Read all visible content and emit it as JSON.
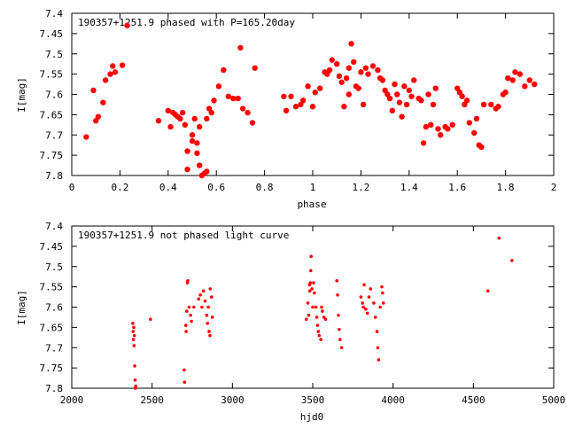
{
  "chart_data": [
    {
      "type": "scatter",
      "title": "190357+1251.9 phased with P=165.20day",
      "xlabel": "phase",
      "ylabel": "I[mag]",
      "xlim": [
        0,
        2
      ],
      "ylim": [
        7.8,
        7.4
      ],
      "y_inverted": true,
      "grid": false,
      "marker_color": "#ff0000",
      "x_ticks": [
        "0",
        "0.2",
        "0.4",
        "0.6",
        "0.8",
        "1",
        "1.2",
        "1.4",
        "1.6",
        "1.8",
        "2"
      ],
      "y_ticks": [
        "7.4",
        "7.45",
        "7.5",
        "7.55",
        "7.6",
        "7.65",
        "7.7",
        "7.75",
        "7.8"
      ],
      "points": [
        [
          0.06,
          7.705
        ],
        [
          0.09,
          7.59
        ],
        [
          0.1,
          7.665
        ],
        [
          0.11,
          7.655
        ],
        [
          0.13,
          7.62
        ],
        [
          0.14,
          7.565
        ],
        [
          0.16,
          7.55
        ],
        [
          0.17,
          7.53
        ],
        [
          0.18,
          7.545
        ],
        [
          0.21,
          7.528
        ],
        [
          0.23,
          7.43
        ],
        [
          0.36,
          7.665
        ],
        [
          0.4,
          7.64
        ],
        [
          0.41,
          7.68
        ],
        [
          0.42,
          7.645
        ],
        [
          0.43,
          7.65
        ],
        [
          0.44,
          7.655
        ],
        [
          0.45,
          7.66
        ],
        [
          0.46,
          7.645
        ],
        [
          0.47,
          7.675
        ],
        [
          0.48,
          7.74
        ],
        [
          0.48,
          7.785
        ],
        [
          0.5,
          7.715
        ],
        [
          0.5,
          7.7
        ],
        [
          0.51,
          7.66
        ],
        [
          0.52,
          7.745
        ],
        [
          0.52,
          7.72
        ],
        [
          0.53,
          7.68
        ],
        [
          0.53,
          7.775
        ],
        [
          0.54,
          7.8
        ],
        [
          0.55,
          7.795
        ],
        [
          0.56,
          7.79
        ],
        [
          0.56,
          7.66
        ],
        [
          0.57,
          7.635
        ],
        [
          0.58,
          7.645
        ],
        [
          0.59,
          7.615
        ],
        [
          0.61,
          7.58
        ],
        [
          0.63,
          7.54
        ],
        [
          0.65,
          7.605
        ],
        [
          0.67,
          7.61
        ],
        [
          0.69,
          7.61
        ],
        [
          0.7,
          7.485
        ],
        [
          0.71,
          7.635
        ],
        [
          0.73,
          7.645
        ],
        [
          0.75,
          7.67
        ],
        [
          0.76,
          7.535
        ],
        [
          0.88,
          7.605
        ],
        [
          0.89,
          7.64
        ],
        [
          0.91,
          7.605
        ],
        [
          0.93,
          7.63
        ],
        [
          0.95,
          7.625
        ],
        [
          0.96,
          7.615
        ],
        [
          0.98,
          7.58
        ],
        [
          1.0,
          7.63
        ],
        [
          1.01,
          7.595
        ],
        [
          1.03,
          7.585
        ],
        [
          1.05,
          7.545
        ],
        [
          1.06,
          7.55
        ],
        [
          1.07,
          7.54
        ],
        [
          1.08,
          7.515
        ],
        [
          1.1,
          7.525
        ],
        [
          1.11,
          7.555
        ],
        [
          1.12,
          7.57
        ],
        [
          1.13,
          7.63
        ],
        [
          1.14,
          7.56
        ],
        [
          1.15,
          7.535
        ],
        [
          1.15,
          7.6
        ],
        [
          1.16,
          7.475
        ],
        [
          1.17,
          7.52
        ],
        [
          1.18,
          7.58
        ],
        [
          1.19,
          7.585
        ],
        [
          1.2,
          7.545
        ],
        [
          1.21,
          7.625
        ],
        [
          1.22,
          7.535
        ],
        [
          1.23,
          7.55
        ],
        [
          1.25,
          7.53
        ],
        [
          1.27,
          7.54
        ],
        [
          1.28,
          7.56
        ],
        [
          1.29,
          7.565
        ],
        [
          1.3,
          7.59
        ],
        [
          1.31,
          7.6
        ],
        [
          1.32,
          7.61
        ],
        [
          1.33,
          7.64
        ],
        [
          1.34,
          7.575
        ],
        [
          1.35,
          7.6
        ],
        [
          1.36,
          7.62
        ],
        [
          1.37,
          7.655
        ],
        [
          1.38,
          7.58
        ],
        [
          1.39,
          7.625
        ],
        [
          1.4,
          7.59
        ],
        [
          1.41,
          7.605
        ],
        [
          1.42,
          7.565
        ],
        [
          1.44,
          7.61
        ],
        [
          1.45,
          7.615
        ],
        [
          1.46,
          7.72
        ],
        [
          1.47,
          7.68
        ],
        [
          1.48,
          7.6
        ],
        [
          1.49,
          7.675
        ],
        [
          1.5,
          7.625
        ],
        [
          1.51,
          7.585
        ],
        [
          1.52,
          7.685
        ],
        [
          1.53,
          7.7
        ],
        [
          1.55,
          7.68
        ],
        [
          1.56,
          7.685
        ],
        [
          1.58,
          7.675
        ],
        [
          1.6,
          7.585
        ],
        [
          1.61,
          7.595
        ],
        [
          1.62,
          7.605
        ],
        [
          1.63,
          7.625
        ],
        [
          1.64,
          7.615
        ],
        [
          1.65,
          7.67
        ],
        [
          1.67,
          7.695
        ],
        [
          1.68,
          7.66
        ],
        [
          1.69,
          7.725
        ],
        [
          1.7,
          7.73
        ],
        [
          1.71,
          7.625
        ],
        [
          1.74,
          7.625
        ],
        [
          1.76,
          7.635
        ],
        [
          1.77,
          7.63
        ],
        [
          1.79,
          7.6
        ],
        [
          1.8,
          7.595
        ],
        [
          1.81,
          7.56
        ],
        [
          1.83,
          7.565
        ],
        [
          1.84,
          7.545
        ],
        [
          1.86,
          7.55
        ],
        [
          1.88,
          7.58
        ],
        [
          1.9,
          7.565
        ],
        [
          1.92,
          7.575
        ]
      ]
    },
    {
      "type": "scatter",
      "title": "190357+1251.9 not phased light curve",
      "xlabel": "hjd0",
      "ylabel": "I[mag]",
      "xlim": [
        2000,
        5000
      ],
      "ylim": [
        7.8,
        7.4
      ],
      "y_inverted": true,
      "grid": false,
      "marker_color": "#ff0000",
      "x_ticks": [
        "2000",
        "2500",
        "3000",
        "3500",
        "4000",
        "4500",
        "5000"
      ],
      "y_ticks": [
        "7.4",
        "7.45",
        "7.5",
        "7.55",
        "7.6",
        "7.65",
        "7.7",
        "7.75",
        "7.8"
      ],
      "points": [
        [
          2380,
          7.64
        ],
        [
          2382,
          7.66
        ],
        [
          2384,
          7.68
        ],
        [
          2386,
          7.65
        ],
        [
          2388,
          7.695
        ],
        [
          2390,
          7.67
        ],
        [
          2392,
          7.745
        ],
        [
          2394,
          7.78
        ],
        [
          2396,
          7.8
        ],
        [
          2398,
          7.795
        ],
        [
          2490,
          7.63
        ],
        [
          2700,
          7.755
        ],
        [
          2702,
          7.785
        ],
        [
          2710,
          7.645
        ],
        [
          2712,
          7.66
        ],
        [
          2716,
          7.61
        ],
        [
          2720,
          7.54
        ],
        [
          2722,
          7.535
        ],
        [
          2730,
          7.6
        ],
        [
          2740,
          7.62
        ],
        [
          2745,
          7.635
        ],
        [
          2760,
          7.6
        ],
        [
          2790,
          7.58
        ],
        [
          2800,
          7.57
        ],
        [
          2810,
          7.6
        ],
        [
          2820,
          7.56
        ],
        [
          2830,
          7.585
        ],
        [
          2840,
          7.62
        ],
        [
          2845,
          7.64
        ],
        [
          2850,
          7.6
        ],
        [
          2855,
          7.66
        ],
        [
          2860,
          7.67
        ],
        [
          2862,
          7.555
        ],
        [
          2870,
          7.575
        ],
        [
          2875,
          7.625
        ],
        [
          3460,
          7.63
        ],
        [
          3470,
          7.59
        ],
        [
          3475,
          7.62
        ],
        [
          3480,
          7.545
        ],
        [
          3482,
          7.56
        ],
        [
          3485,
          7.54
        ],
        [
          3488,
          7.51
        ],
        [
          3490,
          7.475
        ],
        [
          3495,
          7.555
        ],
        [
          3500,
          7.6
        ],
        [
          3505,
          7.54
        ],
        [
          3510,
          7.565
        ],
        [
          3520,
          7.6
        ],
        [
          3525,
          7.625
        ],
        [
          3530,
          7.645
        ],
        [
          3535,
          7.66
        ],
        [
          3540,
          7.67
        ],
        [
          3550,
          7.68
        ],
        [
          3555,
          7.6
        ],
        [
          3560,
          7.61
        ],
        [
          3570,
          7.625
        ],
        [
          3580,
          7.63
        ],
        [
          3650,
          7.535
        ],
        [
          3655,
          7.57
        ],
        [
          3660,
          7.62
        ],
        [
          3665,
          7.655
        ],
        [
          3670,
          7.68
        ],
        [
          3680,
          7.7
        ],
        [
          3800,
          7.575
        ],
        [
          3810,
          7.59
        ],
        [
          3815,
          7.6
        ],
        [
          3820,
          7.545
        ],
        [
          3830,
          7.605
        ],
        [
          3840,
          7.615
        ],
        [
          3850,
          7.575
        ],
        [
          3860,
          7.555
        ],
        [
          3880,
          7.59
        ],
        [
          3890,
          7.625
        ],
        [
          3900,
          7.66
        ],
        [
          3905,
          7.7
        ],
        [
          3910,
          7.73
        ],
        [
          3920,
          7.6
        ],
        [
          3930,
          7.55
        ],
        [
          3935,
          7.565
        ],
        [
          3940,
          7.59
        ],
        [
          4590,
          7.56
        ],
        [
          4660,
          7.43
        ],
        [
          4740,
          7.485
        ]
      ]
    }
  ]
}
